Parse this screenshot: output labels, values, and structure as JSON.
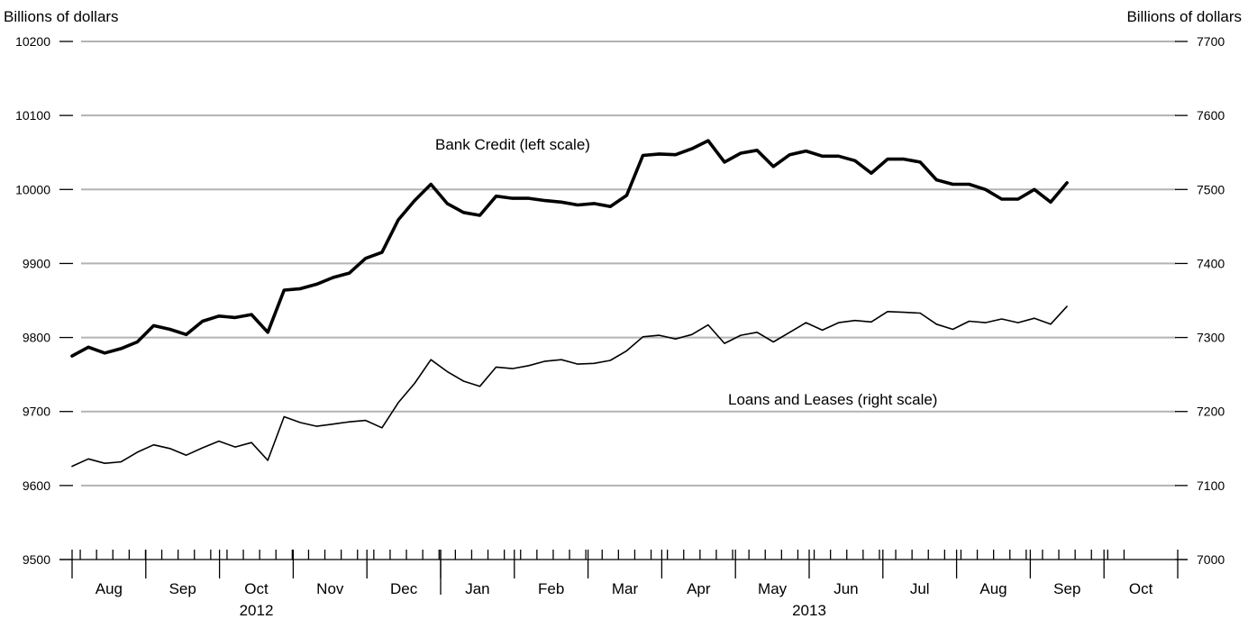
{
  "chart_data": {
    "type": "line",
    "left_axis": {
      "title": "Billions of dollars",
      "ylim": [
        9500,
        10200
      ],
      "ticks": [
        "10200",
        "10100",
        "10000",
        "9900",
        "9800",
        "9700",
        "9600",
        "9500"
      ],
      "tick_values": [
        10200,
        10100,
        10000,
        9900,
        9800,
        9700,
        9600,
        9500
      ]
    },
    "right_axis": {
      "title": "Billions of dollars",
      "ylim": [
        7000,
        7700
      ],
      "ticks": [
        "7700",
        "7600",
        "7500",
        "7400",
        "7300",
        "7200",
        "7100",
        "7000"
      ],
      "tick_values": [
        7700,
        7600,
        7500,
        7400,
        7300,
        7200,
        7100,
        7000
      ]
    },
    "x_axis": {
      "months": [
        "Aug",
        "Sep",
        "Oct",
        "Nov",
        "Dec",
        "Jan",
        "Feb",
        "Mar",
        "Apr",
        "May",
        "Jun",
        "Jul",
        "Aug",
        "Sep",
        "Oct"
      ],
      "years": [
        {
          "label": "2012",
          "month_start": 0,
          "month_end": 4
        },
        {
          "label": "2013",
          "month_start": 5,
          "month_end": 14
        }
      ],
      "weeks_total": 65
    },
    "grid": "horizontal",
    "series": [
      {
        "name": "Bank Credit (left scale)",
        "axis": "left",
        "color": "#000000",
        "style": "thick",
        "values": [
          9775,
          9787,
          9779,
          9785,
          9794,
          9816,
          9811,
          9804,
          9822,
          9829,
          9827,
          9831,
          9807,
          9864,
          9866,
          9872,
          9881,
          9887,
          9907,
          9915,
          9959,
          9985,
          10007,
          9981,
          9969,
          9965,
          9991,
          9988,
          9988,
          9985,
          9983,
          9979,
          9981,
          9977,
          9992,
          10046,
          10048,
          10047,
          10055,
          10066,
          10037,
          10049,
          10053,
          10031,
          10047,
          10052,
          10045,
          10045,
          10039,
          10022,
          10041,
          10041,
          10037,
          10013,
          10007,
          10007,
          10000,
          9987,
          9987,
          10000,
          9983,
          10009
        ]
      },
      {
        "name": "Loans and Leases (right scale)",
        "axis": "right",
        "color": "#000000",
        "style": "thin",
        "values": [
          7126,
          7136,
          7130,
          7132,
          7145,
          7155,
          7150,
          7141,
          7151,
          7160,
          7152,
          7158,
          7134,
          7193,
          7185,
          7180,
          7183,
          7186,
          7188,
          7178,
          7212,
          7238,
          7270,
          7254,
          7241,
          7234,
          7260,
          7258,
          7262,
          7268,
          7270,
          7264,
          7265,
          7269,
          7282,
          7301,
          7303,
          7298,
          7304,
          7317,
          7292,
          7303,
          7307,
          7294,
          7307,
          7320,
          7310,
          7320,
          7323,
          7321,
          7335,
          7334,
          7333,
          7318,
          7311,
          7322,
          7320,
          7325,
          7320,
          7326,
          7318,
          7342
        ]
      }
    ]
  }
}
